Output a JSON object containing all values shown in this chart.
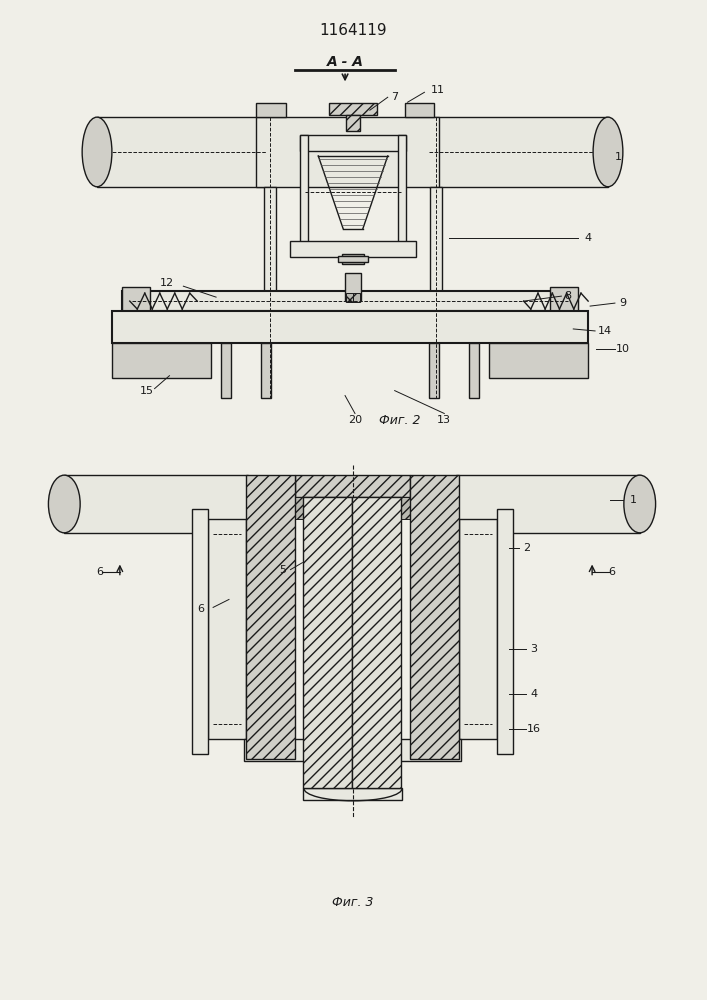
{
  "title": "1164119",
  "fig2_label": "Фиг. 2",
  "fig3_label": "Фиг. 3",
  "section_label": "A - A",
  "bg_color": "#f0efe8",
  "line_color": "#1a1a1a",
  "fig_width": 7.07,
  "fig_height": 10.0
}
